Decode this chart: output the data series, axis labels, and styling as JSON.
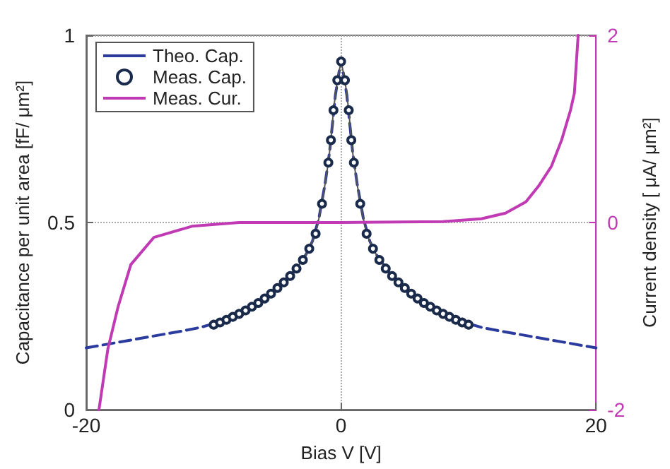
{
  "chart_data": {
    "type": "line",
    "xlabel": "Bias V [V]",
    "ylabel": "Capacitance per unit area [fF/ μm²]",
    "y2label": "Current density [ μA/ μm²]",
    "xlim": [
      -20,
      20
    ],
    "xticks": [
      -20,
      0,
      20
    ],
    "ylim": [
      0,
      1
    ],
    "yticks": [
      0,
      0.5,
      1
    ],
    "y2lim": [
      -2,
      2
    ],
    "y2ticks": [
      -2,
      0,
      2
    ],
    "grid": true,
    "legend": "top left",
    "series": [
      {
        "name": "Theo. Cap.",
        "color": "#2b3c9e",
        "line_style": "dashed",
        "marker": "none",
        "x": [
          -20,
          -17.5,
          -15,
          -12.5,
          -11,
          -9.25,
          -7.25,
          -5.25,
          -3.75,
          -2.75,
          -2.25,
          -1.75,
          -1.25,
          -0.9,
          -0.45,
          -0.15,
          0.15,
          0.45,
          0.9,
          1.25,
          1.75,
          2.25,
          2.75,
          3.75,
          5.25,
          7.25,
          9.25,
          11,
          12.5,
          15,
          17.5,
          20
        ],
        "values": [
          0.165,
          0.18,
          0.195,
          0.21,
          0.22,
          0.237,
          0.27,
          0.317,
          0.367,
          0.415,
          0.45,
          0.51,
          0.605,
          0.69,
          0.84,
          0.905,
          0.905,
          0.84,
          0.69,
          0.605,
          0.51,
          0.45,
          0.415,
          0.367,
          0.317,
          0.27,
          0.237,
          0.22,
          0.21,
          0.195,
          0.18,
          0.165
        ]
      },
      {
        "name": "Meas. Cap.",
        "color": "#555555",
        "line_style": "solid",
        "marker": "circle",
        "x": [
          -10,
          -9.5,
          -9,
          -8.5,
          -8,
          -7.5,
          -7,
          -6.5,
          -6,
          -5.5,
          -5,
          -4.5,
          -4,
          -3.5,
          -3,
          -2.5,
          -2,
          -1.5,
          -1,
          -0.8,
          -0.6,
          -0.3,
          0,
          0.3,
          0.6,
          0.8,
          1,
          1.5,
          2,
          2.5,
          3,
          3.5,
          4,
          4.5,
          5,
          5.5,
          6,
          6.5,
          7,
          7.5,
          8,
          8.5,
          9,
          9.5,
          10
        ],
        "values": [
          0.227,
          0.233,
          0.24,
          0.248,
          0.256,
          0.265,
          0.275,
          0.285,
          0.297,
          0.31,
          0.325,
          0.34,
          0.357,
          0.377,
          0.4,
          0.43,
          0.47,
          0.55,
          0.66,
          0.72,
          0.8,
          0.88,
          0.93,
          0.88,
          0.8,
          0.72,
          0.66,
          0.55,
          0.47,
          0.43,
          0.4,
          0.377,
          0.357,
          0.34,
          0.325,
          0.31,
          0.297,
          0.285,
          0.275,
          0.265,
          0.256,
          0.248,
          0.24,
          0.233,
          0.227
        ]
      },
      {
        "name": "Meas. Cur.",
        "color": "#c03ab4",
        "line_style": "solid",
        "marker": "none",
        "axis": "y2",
        "x": [
          -19,
          -18.3,
          -17.5,
          -16.5,
          -14.7,
          -11.7,
          -8,
          0,
          8,
          11,
          12.9,
          14.5,
          15.5,
          16.5,
          17.3,
          18,
          18.3,
          18.6
        ],
        "values": [
          -2,
          -1.35,
          -0.9,
          -0.45,
          -0.16,
          -0.04,
          0,
          0,
          0.01,
          0.04,
          0.1,
          0.22,
          0.39,
          0.6,
          0.88,
          1.2,
          1.38,
          2
        ]
      }
    ]
  }
}
